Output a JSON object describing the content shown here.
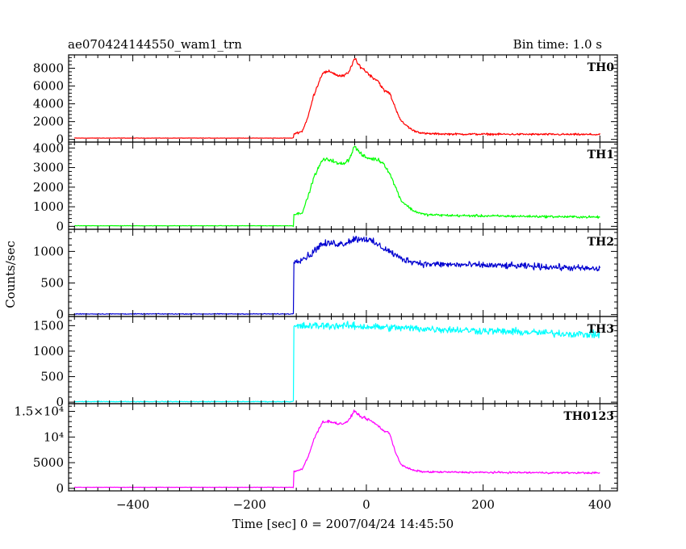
{
  "chart_data": {
    "type": "line",
    "title": "ae070424144550_wam1_trn",
    "bin_time_label": "Bin time: 1.0 s",
    "xlabel": "Time [sec] 0 = 2007/04/24 14:45:50",
    "ylabel": "Counts/sec",
    "xlim": [
      -510,
      430
    ],
    "x_ticks": [
      -400,
      -200,
      0,
      200,
      400
    ],
    "x_tick_labels": [
      "−400",
      "−200",
      "0",
      "200",
      "400"
    ],
    "panels": [
      {
        "name": "TH0",
        "color": "#ff0000",
        "ylim": [
          -300,
          9500
        ],
        "y_ticks": [
          0,
          2000,
          4000,
          6000,
          8000
        ],
        "y_tick_labels": [
          "0",
          "2000",
          "4000",
          "6000",
          "8000"
        ],
        "noise": 120,
        "points": [
          [
            -500,
            150
          ],
          [
            -125,
            150
          ],
          [
            -124,
            650
          ],
          [
            -110,
            900
          ],
          [
            -100,
            2500
          ],
          [
            -90,
            5000
          ],
          [
            -75,
            7500
          ],
          [
            -60,
            7600
          ],
          [
            -50,
            7200
          ],
          [
            -40,
            7100
          ],
          [
            -30,
            7500
          ],
          [
            -25,
            8400
          ],
          [
            -20,
            9100
          ],
          [
            -15,
            8500
          ],
          [
            -10,
            8200
          ],
          [
            0,
            7600
          ],
          [
            10,
            7000
          ],
          [
            20,
            6600
          ],
          [
            30,
            5500
          ],
          [
            40,
            5200
          ],
          [
            50,
            3500
          ],
          [
            60,
            2000
          ],
          [
            80,
            1000
          ],
          [
            100,
            650
          ],
          [
            150,
            600
          ],
          [
            400,
            550
          ]
        ]
      },
      {
        "name": "TH1",
        "color": "#00ff00",
        "ylim": [
          -150,
          4300
        ],
        "y_ticks": [
          0,
          1000,
          2000,
          3000,
          4000
        ],
        "y_tick_labels": [
          "0",
          "1000",
          "2000",
          "3000",
          "4000"
        ],
        "noise": 60,
        "points": [
          [
            -500,
            30
          ],
          [
            -125,
            30
          ],
          [
            -124,
            600
          ],
          [
            -110,
            700
          ],
          [
            -100,
            1500
          ],
          [
            -90,
            2500
          ],
          [
            -75,
            3400
          ],
          [
            -60,
            3400
          ],
          [
            -50,
            3200
          ],
          [
            -40,
            3200
          ],
          [
            -30,
            3400
          ],
          [
            -20,
            4100
          ],
          [
            -10,
            3700
          ],
          [
            0,
            3500
          ],
          [
            20,
            3400
          ],
          [
            30,
            3200
          ],
          [
            40,
            2700
          ],
          [
            50,
            2000
          ],
          [
            60,
            1300
          ],
          [
            80,
            800
          ],
          [
            100,
            600
          ],
          [
            150,
            550
          ],
          [
            400,
            470
          ]
        ]
      },
      {
        "name": "TH2",
        "color": "#0000d0",
        "ylim": [
          -30,
          1350
        ],
        "y_ticks": [
          0,
          500,
          1000
        ],
        "y_tick_labels": [
          "0",
          "500",
          "1000"
        ],
        "noise": 35,
        "points": [
          [
            -500,
            10
          ],
          [
            -125,
            10
          ],
          [
            -124,
            850
          ],
          [
            -110,
            880
          ],
          [
            -95,
            950
          ],
          [
            -80,
            1100
          ],
          [
            -60,
            1130
          ],
          [
            -40,
            1120
          ],
          [
            -20,
            1200
          ],
          [
            0,
            1200
          ],
          [
            20,
            1100
          ],
          [
            40,
            1000
          ],
          [
            60,
            880
          ],
          [
            100,
            800
          ],
          [
            200,
            780
          ],
          [
            300,
            760
          ],
          [
            400,
            720
          ]
        ]
      },
      {
        "name": "TH3",
        "color": "#00ffff",
        "ylim": [
          -30,
          1680
        ],
        "y_ticks": [
          0,
          500,
          1000,
          1500
        ],
        "y_tick_labels": [
          "0",
          "500",
          "1000",
          "1500"
        ],
        "noise": 45,
        "points": [
          [
            -500,
            10
          ],
          [
            -125,
            10
          ],
          [
            -124,
            1480
          ],
          [
            -80,
            1500
          ],
          [
            -40,
            1500
          ],
          [
            0,
            1480
          ],
          [
            100,
            1440
          ],
          [
            200,
            1400
          ],
          [
            300,
            1360
          ],
          [
            400,
            1320
          ]
        ]
      },
      {
        "name": "TH0123",
        "color": "#ff00ff",
        "ylim": [
          -500,
          16500
        ],
        "y_ticks": [
          0,
          5000,
          10000,
          15000
        ],
        "y_tick_labels": [
          "0",
          "5000",
          "10⁴",
          "1.5×10⁴"
        ],
        "noise": 160,
        "points": [
          [
            -500,
            200
          ],
          [
            -125,
            200
          ],
          [
            -124,
            3300
          ],
          [
            -110,
            3700
          ],
          [
            -100,
            6000
          ],
          [
            -90,
            9500
          ],
          [
            -75,
            13000
          ],
          [
            -60,
            13000
          ],
          [
            -50,
            12600
          ],
          [
            -40,
            12600
          ],
          [
            -30,
            13200
          ],
          [
            -20,
            15200
          ],
          [
            -15,
            14500
          ],
          [
            -10,
            14000
          ],
          [
            0,
            13600
          ],
          [
            10,
            13000
          ],
          [
            20,
            12200
          ],
          [
            30,
            11200
          ],
          [
            40,
            10700
          ],
          [
            50,
            7000
          ],
          [
            60,
            4500
          ],
          [
            80,
            3500
          ],
          [
            100,
            3200
          ],
          [
            200,
            3100
          ],
          [
            400,
            3000
          ]
        ]
      }
    ]
  }
}
